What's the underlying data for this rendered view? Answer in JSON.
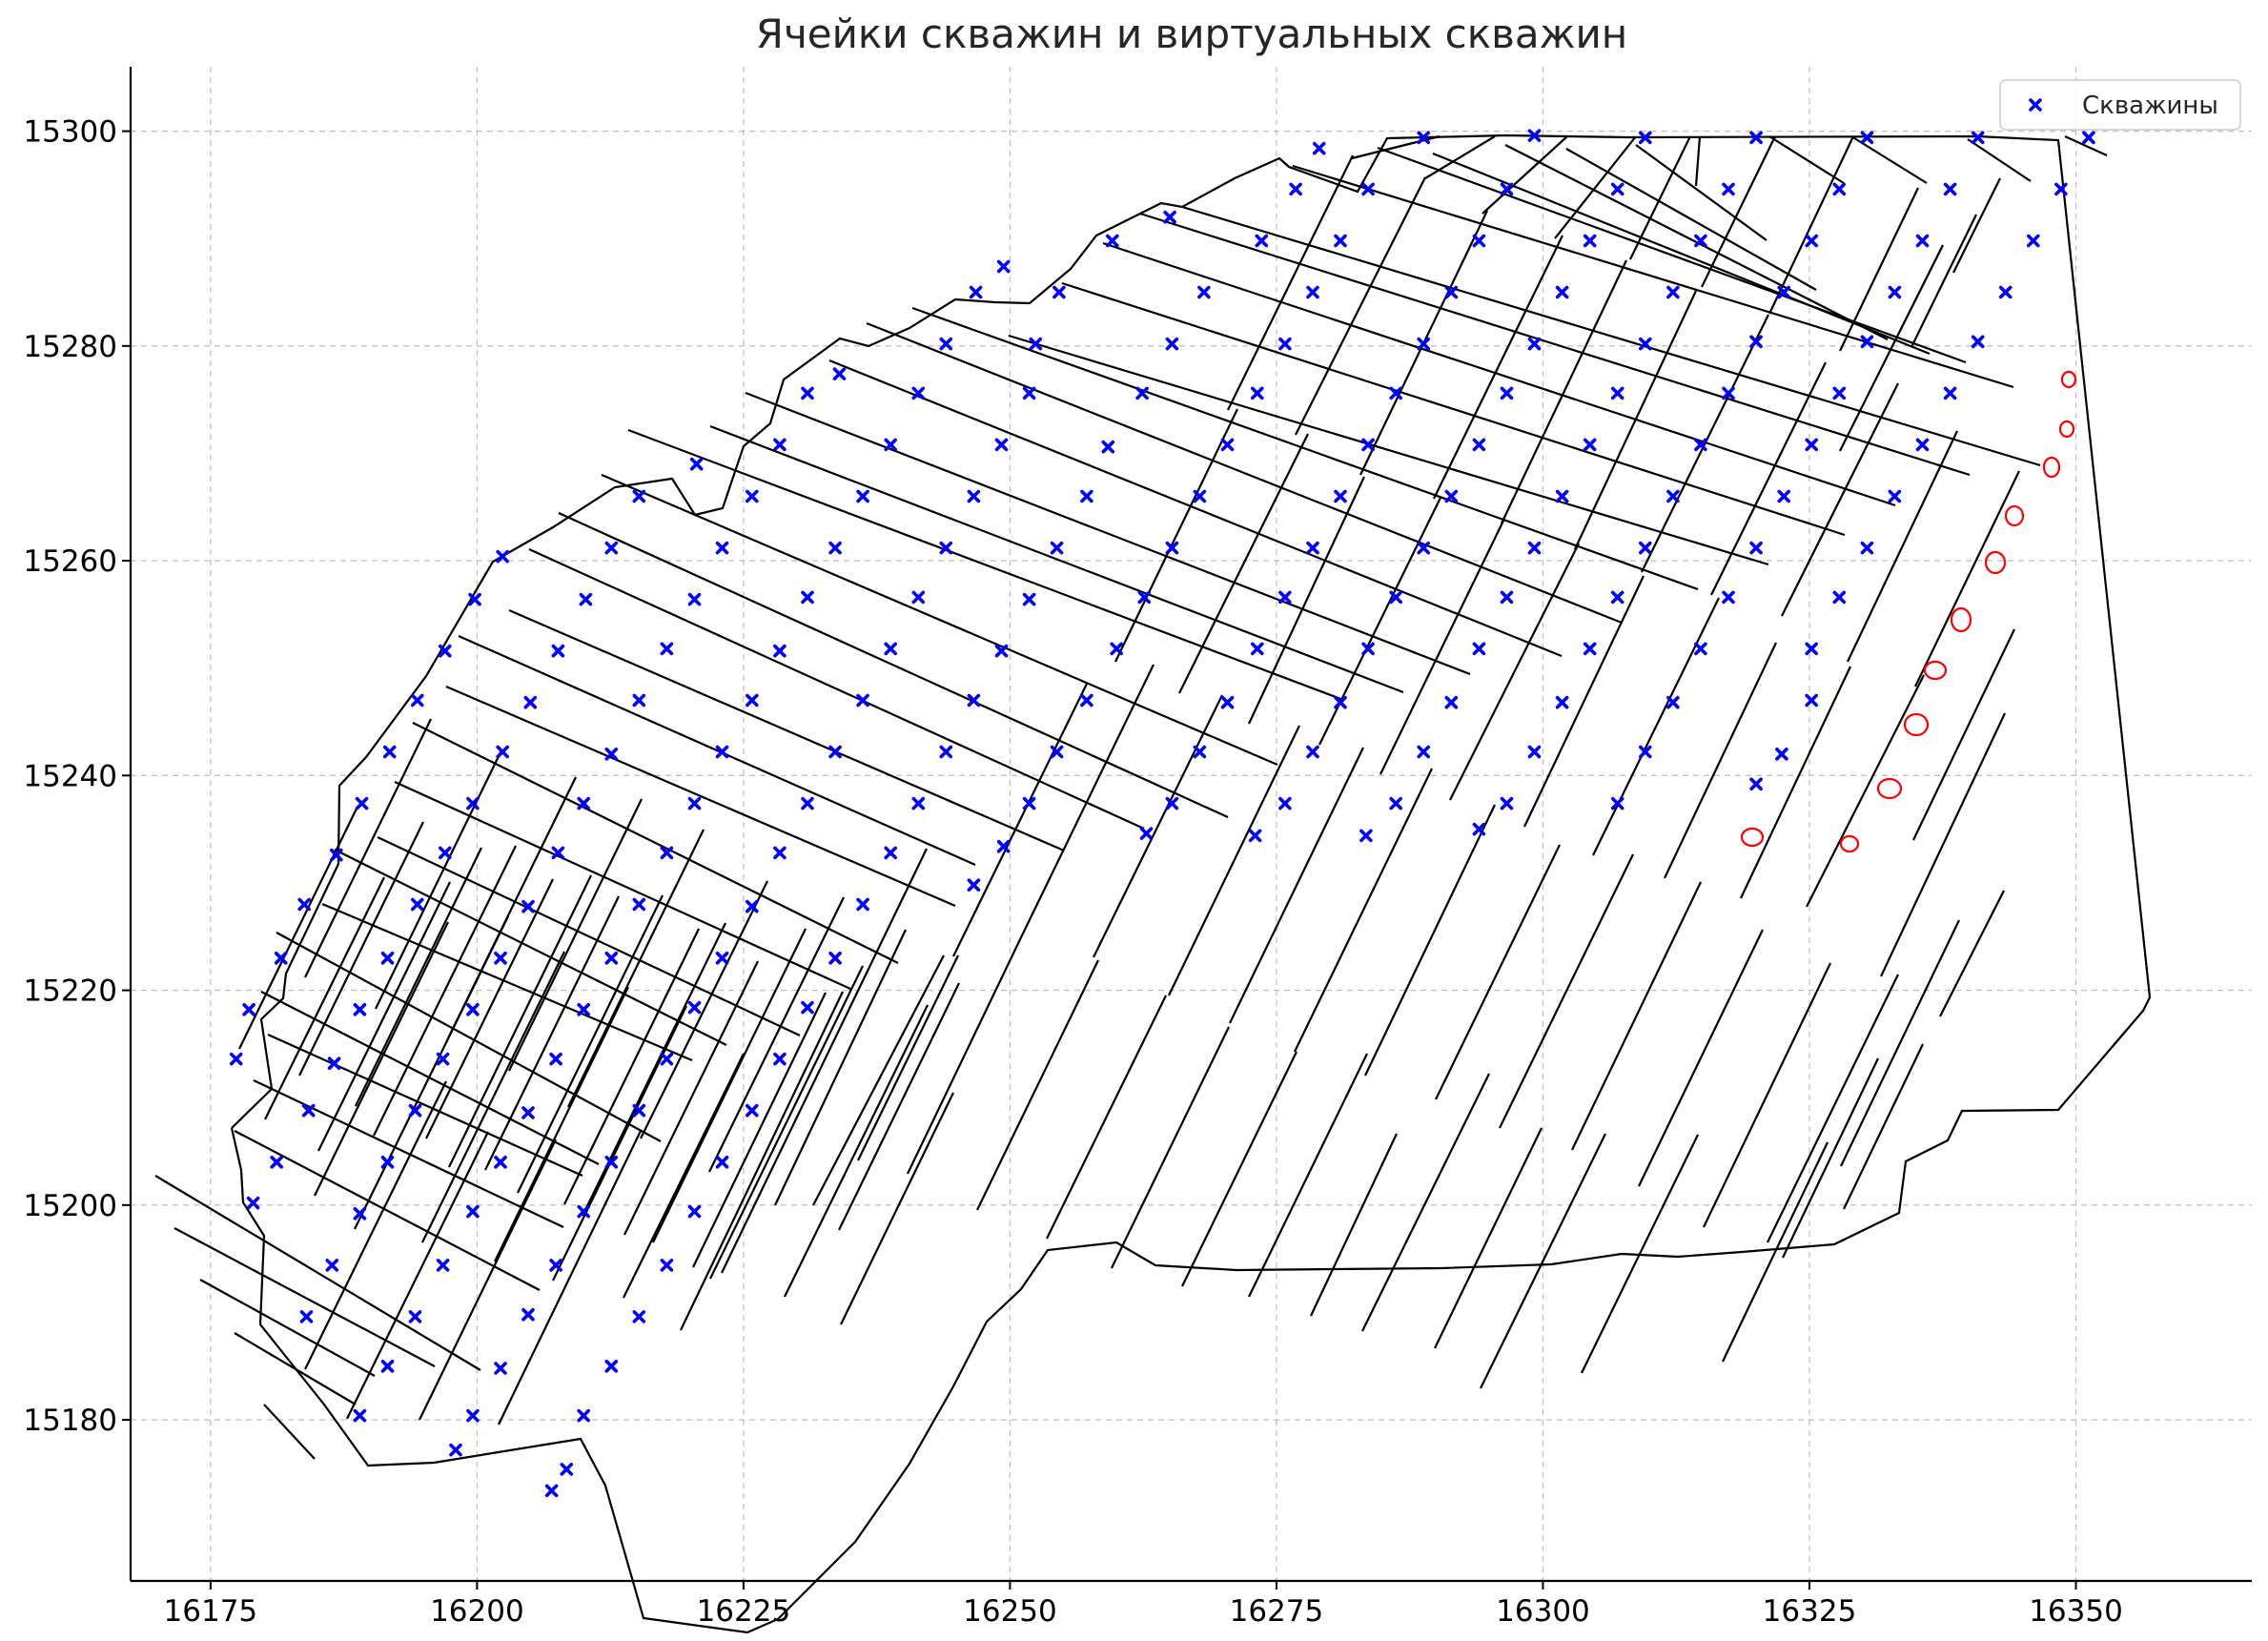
{
  "chart_data": {
    "type": "scatter",
    "title": "Ячейки скважин и виртуальных скважин",
    "xlabel": "",
    "ylabel": "",
    "xlim": [
      16167.5,
      16366.5
    ],
    "ylim": [
      15165,
      15306
    ],
    "x_ticks": [
      16175,
      16200,
      16225,
      16250,
      16275,
      16300,
      16325,
      16350
    ],
    "y_ticks": [
      15180,
      15200,
      15220,
      15240,
      15260,
      15280,
      15300
    ],
    "x_tick_labels": [
      "16175",
      "16200",
      "16225",
      "16250",
      "16275",
      "16300",
      "16325",
      "16350"
    ],
    "y_tick_labels": [
      "15180",
      "15200",
      "15220",
      "15240",
      "15260",
      "15280",
      "15300"
    ],
    "grid": true,
    "legend": {
      "position": "top-right",
      "entries": [
        "Скважины"
      ]
    },
    "colors": {
      "wells": "#0000ff",
      "cells": "#000000",
      "annotation": "#ff0000",
      "grid": "#b0b0b0"
    },
    "series": [
      {
        "name": "Скважины",
        "marker": "x",
        "points": [
          [
            16177.4,
            15213.6
          ],
          [
            16178.6,
            15218.2
          ],
          [
            16179.0,
            15200.2
          ],
          [
            16181.2,
            15204.0
          ],
          [
            16181.6,
            15223.0
          ],
          [
            16183.8,
            15228.0
          ],
          [
            16184.2,
            15208.8
          ],
          [
            16184.0,
            15189.6
          ],
          [
            16186.4,
            15194.4
          ],
          [
            16186.6,
            15213.2
          ],
          [
            16186.8,
            15232.6
          ],
          [
            16189.0,
            15180.4
          ],
          [
            16189.0,
            15199.2
          ],
          [
            16189.0,
            15218.2
          ],
          [
            16189.2,
            15237.4
          ],
          [
            16191.6,
            15185.0
          ],
          [
            16191.6,
            15204.0
          ],
          [
            16191.6,
            15223.0
          ],
          [
            16191.8,
            15242.2
          ],
          [
            16194.2,
            15189.6
          ],
          [
            16194.2,
            15208.8
          ],
          [
            16194.4,
            15228.0
          ],
          [
            16194.4,
            15247.0
          ],
          [
            16196.8,
            15194.4
          ],
          [
            16196.8,
            15213.6
          ],
          [
            16197.0,
            15232.8
          ],
          [
            16197.0,
            15251.6
          ],
          [
            16198.0,
            15177.2
          ],
          [
            16199.6,
            15180.4
          ],
          [
            16199.6,
            15199.4
          ],
          [
            16199.6,
            15218.2
          ],
          [
            16199.6,
            15237.4
          ],
          [
            16199.8,
            15256.4
          ],
          [
            16202.2,
            15184.8
          ],
          [
            16202.2,
            15204.0
          ],
          [
            16202.2,
            15223.0
          ],
          [
            16202.4,
            15242.2
          ],
          [
            16202.4,
            15260.4
          ],
          [
            16204.8,
            15189.8
          ],
          [
            16204.8,
            15208.6
          ],
          [
            16204.8,
            15227.8
          ],
          [
            16205.0,
            15246.8
          ],
          [
            16207.0,
            15173.4
          ],
          [
            16207.4,
            15194.4
          ],
          [
            16207.4,
            15213.6
          ],
          [
            16208.4,
            15175.4
          ],
          [
            16207.6,
            15232.8
          ],
          [
            16207.6,
            15251.6
          ],
          [
            16210.0,
            15180.4
          ],
          [
            16210.0,
            15199.4
          ],
          [
            16210.0,
            15218.2
          ],
          [
            16210.0,
            15237.4
          ],
          [
            16210.2,
            15256.4
          ],
          [
            16212.6,
            15185.0
          ],
          [
            16212.6,
            15204.0
          ],
          [
            16212.6,
            15223.0
          ],
          [
            16212.6,
            15242.0
          ],
          [
            16212.6,
            15261.2
          ],
          [
            16215.2,
            15189.6
          ],
          [
            16215.2,
            15208.8
          ],
          [
            16215.2,
            15228.0
          ],
          [
            16215.2,
            15247.0
          ],
          [
            16215.2,
            15266.0
          ],
          [
            16217.8,
            15194.4
          ],
          [
            16217.8,
            15213.6
          ],
          [
            16217.8,
            15232.8
          ],
          [
            16217.8,
            15251.8
          ],
          [
            16220.6,
            15269.0
          ],
          [
            16220.4,
            15199.4
          ],
          [
            16220.4,
            15218.4
          ],
          [
            16220.4,
            15237.4
          ],
          [
            16220.4,
            15256.4
          ],
          [
            16223.0,
            15204.0
          ],
          [
            16223.0,
            15223.0
          ],
          [
            16223.0,
            15242.2
          ],
          [
            16223.0,
            15261.2
          ],
          [
            16225.8,
            15208.8
          ],
          [
            16225.8,
            15227.8
          ],
          [
            16225.8,
            15247.0
          ],
          [
            16225.8,
            15266.0
          ],
          [
            16228.4,
            15213.6
          ],
          [
            16228.4,
            15232.8
          ],
          [
            16228.4,
            15251.6
          ],
          [
            16228.4,
            15270.8
          ],
          [
            16231.0,
            15218.4
          ],
          [
            16231.0,
            15237.4
          ],
          [
            16231.0,
            15256.6
          ],
          [
            16231.0,
            15275.6
          ],
          [
            16233.6,
            15223.0
          ],
          [
            16233.6,
            15242.2
          ],
          [
            16233.6,
            15261.2
          ],
          [
            16234.0,
            15277.4
          ],
          [
            16236.2,
            15228.0
          ],
          [
            16236.2,
            15247.0
          ],
          [
            16236.2,
            15266.0
          ],
          [
            16238.8,
            15232.8
          ],
          [
            16238.8,
            15251.8
          ],
          [
            16238.8,
            15270.8
          ],
          [
            16241.4,
            15237.4
          ],
          [
            16241.4,
            15256.6
          ],
          [
            16241.4,
            15275.6
          ],
          [
            16244.0,
            15242.2
          ],
          [
            16244.0,
            15261.2
          ],
          [
            16244.0,
            15280.2
          ],
          [
            16246.6,
            15229.8
          ],
          [
            16246.6,
            15247.0
          ],
          [
            16246.6,
            15266.0
          ],
          [
            16246.8,
            15285.0
          ],
          [
            16249.4,
            15233.4
          ],
          [
            16249.2,
            15251.6
          ],
          [
            16249.2,
            15270.8
          ],
          [
            16249.4,
            15287.4
          ],
          [
            16251.8,
            15237.4
          ],
          [
            16251.8,
            15256.4
          ],
          [
            16251.8,
            15275.6
          ],
          [
            16252.4,
            15280.2
          ],
          [
            16254.4,
            15242.2
          ],
          [
            16254.4,
            15261.2
          ],
          [
            16254.6,
            15285.0
          ],
          [
            16257.2,
            15247.0
          ],
          [
            16257.2,
            15266.0
          ],
          [
            16259.2,
            15270.6
          ],
          [
            16259.6,
            15289.8
          ],
          [
            16260.0,
            15251.8
          ],
          [
            16262.8,
            15234.6
          ],
          [
            16262.6,
            15256.6
          ],
          [
            16262.4,
            15275.6
          ],
          [
            16265.0,
            15292.0
          ],
          [
            16265.2,
            15237.4
          ],
          [
            16265.2,
            15261.2
          ],
          [
            16265.2,
            15280.2
          ],
          [
            16267.8,
            15242.2
          ],
          [
            16267.8,
            15266.0
          ],
          [
            16268.2,
            15285.0
          ],
          [
            16270.4,
            15246.8
          ],
          [
            16270.4,
            15270.8
          ],
          [
            16273.0,
            15234.4
          ],
          [
            16273.2,
            15251.8
          ],
          [
            16273.2,
            15275.6
          ],
          [
            16273.6,
            15289.8
          ],
          [
            16275.8,
            15237.4
          ],
          [
            16275.8,
            15256.6
          ],
          [
            16275.8,
            15280.2
          ],
          [
            16276.8,
            15294.6
          ],
          [
            16279.0,
            15298.4
          ],
          [
            16278.4,
            15242.2
          ],
          [
            16278.4,
            15261.2
          ],
          [
            16278.4,
            15285.0
          ],
          [
            16281.0,
            15246.8
          ],
          [
            16281.0,
            15266.0
          ],
          [
            16281.0,
            15289.8
          ],
          [
            16283.4,
            15234.4
          ],
          [
            16283.6,
            15251.8
          ],
          [
            16283.6,
            15270.8
          ],
          [
            16283.6,
            15294.6
          ],
          [
            16286.2,
            15237.4
          ],
          [
            16286.2,
            15256.6
          ],
          [
            16286.2,
            15275.6
          ],
          [
            16288.8,
            15242.2
          ],
          [
            16288.8,
            15261.2
          ],
          [
            16288.8,
            15280.2
          ],
          [
            16288.8,
            15299.4
          ],
          [
            16291.4,
            15246.8
          ],
          [
            16291.4,
            15266.0
          ],
          [
            16291.4,
            15285.0
          ],
          [
            16294.0,
            15235.0
          ],
          [
            16294.0,
            15251.8
          ],
          [
            16294.0,
            15270.8
          ],
          [
            16294.0,
            15289.8
          ],
          [
            16296.6,
            15237.4
          ],
          [
            16296.6,
            15256.6
          ],
          [
            16296.6,
            15275.6
          ],
          [
            16296.6,
            15294.6
          ],
          [
            16299.2,
            15242.2
          ],
          [
            16299.2,
            15261.2
          ],
          [
            16299.2,
            15280.2
          ],
          [
            16299.2,
            15299.6
          ],
          [
            16301.8,
            15246.8
          ],
          [
            16301.8,
            15266.0
          ],
          [
            16301.8,
            15285.0
          ],
          [
            16304.4,
            15251.8
          ],
          [
            16304.4,
            15270.8
          ],
          [
            16304.4,
            15289.8
          ],
          [
            16307.0,
            15237.4
          ],
          [
            16307.0,
            15256.6
          ],
          [
            16307.0,
            15275.6
          ],
          [
            16307.0,
            15294.6
          ],
          [
            16309.6,
            15242.2
          ],
          [
            16309.6,
            15261.2
          ],
          [
            16309.6,
            15280.2
          ],
          [
            16309.6,
            15299.4
          ],
          [
            16312.2,
            15246.8
          ],
          [
            16312.2,
            15266.0
          ],
          [
            16312.2,
            15285.0
          ],
          [
            16314.8,
            15251.8
          ],
          [
            16314.8,
            15270.8
          ],
          [
            16314.8,
            15289.8
          ],
          [
            16317.4,
            15256.6
          ],
          [
            16317.4,
            15275.6
          ],
          [
            16317.4,
            15294.6
          ],
          [
            16320.0,
            15239.2
          ],
          [
            16320.0,
            15261.2
          ],
          [
            16320.0,
            15280.4
          ],
          [
            16320.0,
            15299.4
          ],
          [
            16322.4,
            15242.0
          ],
          [
            16322.6,
            15266.0
          ],
          [
            16322.6,
            15285.0
          ],
          [
            16325.2,
            15247.0
          ],
          [
            16325.2,
            15251.8
          ],
          [
            16325.2,
            15270.8
          ],
          [
            16325.2,
            15289.8
          ],
          [
            16327.8,
            15256.6
          ],
          [
            16327.8,
            15275.6
          ],
          [
            16327.8,
            15294.6
          ],
          [
            16330.4,
            15261.2
          ],
          [
            16330.4,
            15280.4
          ],
          [
            16330.4,
            15299.4
          ],
          [
            16333.0,
            15266.0
          ],
          [
            16333.0,
            15285.0
          ],
          [
            16335.6,
            15270.8
          ],
          [
            16335.6,
            15289.8
          ],
          [
            16338.2,
            15275.6
          ],
          [
            16338.2,
            15294.6
          ],
          [
            16340.8,
            15280.4
          ],
          [
            16340.8,
            15299.4
          ],
          [
            16343.4,
            15285.0
          ],
          [
            16346.0,
            15289.8
          ],
          [
            16348.6,
            15294.6
          ],
          [
            16351.2,
            15299.4
          ]
        ]
      }
    ]
  }
}
